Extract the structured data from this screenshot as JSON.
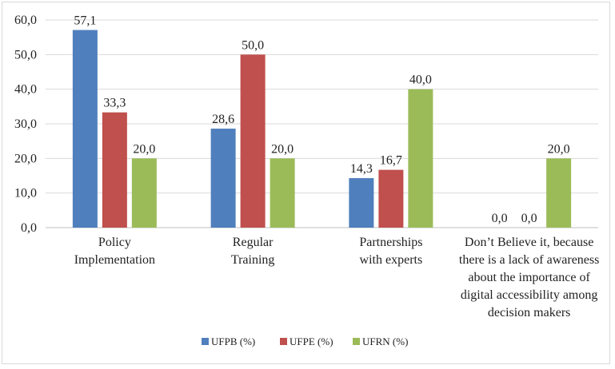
{
  "chart_data": {
    "type": "bar",
    "categories": [
      [
        "Policy",
        "Implementation"
      ],
      [
        "Regular",
        "Training"
      ],
      [
        "Partnerships",
        "with experts"
      ],
      [
        "Don’t Believe it, because",
        "there is a lack of awareness",
        "about the importance of",
        "digital accessibility among",
        "decision makers"
      ]
    ],
    "series": [
      {
        "name": "UFPB (%)",
        "color": "#4f7fbd",
        "values": [
          57.1,
          28.6,
          14.3,
          0.0
        ],
        "labels": [
          "57,1",
          "28,6",
          "14,3",
          "0,0"
        ]
      },
      {
        "name": "UFPE (%)",
        "color": "#c0504d",
        "values": [
          33.3,
          50.0,
          16.7,
          0.0
        ],
        "labels": [
          "33,3",
          "50,0",
          "16,7",
          "0,0"
        ]
      },
      {
        "name": "UFRN (%)",
        "color": "#9bbb59",
        "values": [
          20.0,
          20.0,
          40.0,
          20.0
        ],
        "labels": [
          "20,0",
          "20,0",
          "40,0",
          "20,0"
        ]
      }
    ],
    "y_ticks": [
      0,
      10,
      20,
      30,
      40,
      50,
      60
    ],
    "y_tick_labels": [
      "0,0",
      "10,0",
      "20,0",
      "30,0",
      "40,0",
      "50,0",
      "60,0"
    ],
    "ylim": [
      0,
      60
    ],
    "grid": true,
    "legend_position": "bottom"
  }
}
